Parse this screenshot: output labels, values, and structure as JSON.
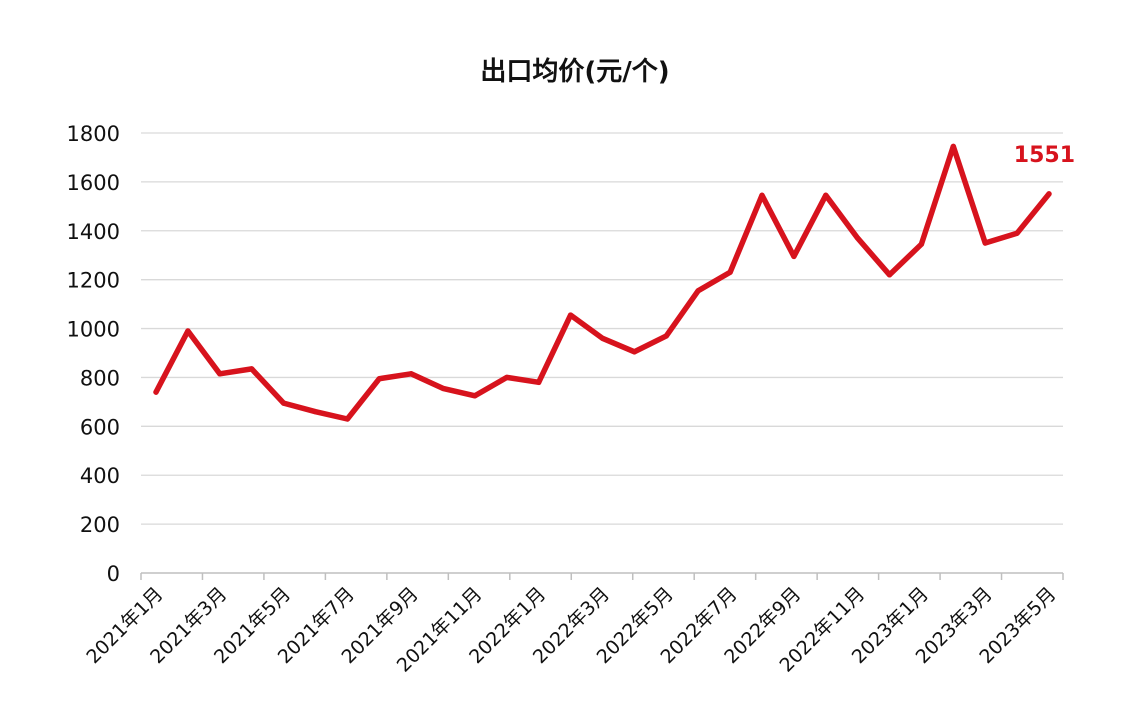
{
  "chart_data": {
    "type": "line",
    "title": "出口均价(元/个)",
    "xlabel": "",
    "ylabel": "",
    "ylim": [
      0,
      1800
    ],
    "yticks": [
      0,
      200,
      400,
      600,
      800,
      1000,
      1200,
      1400,
      1600,
      1800
    ],
    "grid": true,
    "legend": "none",
    "x": [
      "2021年1月",
      "2021年2月",
      "2021年3月",
      "2021年4月",
      "2021年5月",
      "2021年6月",
      "2021年7月",
      "2021年8月",
      "2021年9月",
      "2021年10月",
      "2021年11月",
      "2021年12月",
      "2022年1月",
      "2022年2月",
      "2022年3月",
      "2022年4月",
      "2022年5月",
      "2022年6月",
      "2022年7月",
      "2022年8月",
      "2022年9月",
      "2022年10月",
      "2022年11月",
      "2022年12月",
      "2023年1月",
      "2023年2月",
      "2023年3月",
      "2023年4月",
      "2023年5月"
    ],
    "x_tick_labels": [
      "2021年1月",
      "2021年3月",
      "2021年5月",
      "2021年7月",
      "2021年9月",
      "2021年11月",
      "2022年1月",
      "2022年3月",
      "2022年5月",
      "2022年7月",
      "2022年9月",
      "2022年11月",
      "2023年1月",
      "2023年3月",
      "2023年5月"
    ],
    "series": [
      {
        "values": [
          740,
          990,
          815,
          835,
          695,
          660,
          630,
          795,
          815,
          755,
          725,
          800,
          780,
          1055,
          960,
          905,
          970,
          1155,
          1230,
          1545,
          1295,
          1545,
          1370,
          1220,
          1345,
          1745,
          1350,
          1390,
          1551
        ],
        "color": "#d7131d"
      }
    ],
    "annotations": [
      {
        "text": "1551",
        "color": "#d7131d"
      }
    ]
  }
}
